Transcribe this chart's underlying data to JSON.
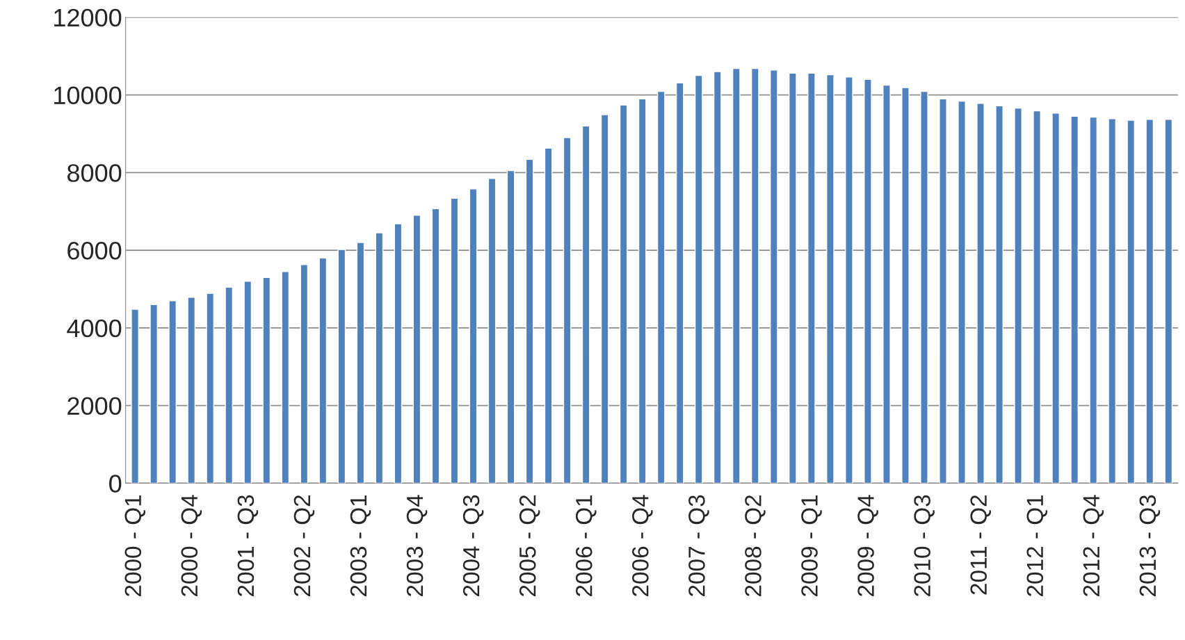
{
  "chart_data": {
    "type": "bar",
    "categories": [
      "2000 - Q1",
      null,
      null,
      "2000 - Q4",
      null,
      null,
      "2001 - Q3",
      null,
      null,
      "2002 - Q2",
      null,
      null,
      "2003 - Q1",
      null,
      null,
      "2003 - Q4",
      null,
      null,
      "2004 - Q3",
      null,
      null,
      "2005 - Q2",
      null,
      null,
      "2006 - Q1",
      null,
      null,
      "2006 - Q4",
      null,
      null,
      "2007 - Q3",
      null,
      null,
      "2008 - Q2",
      null,
      null,
      "2009 - Q1",
      null,
      null,
      "2009 - Q4",
      null,
      null,
      "2010 - Q3",
      null,
      null,
      "2011 - Q2",
      null,
      null,
      "2012 - Q1",
      null,
      null,
      "2012 - Q4",
      null,
      null,
      "2013 - Q3",
      null
    ],
    "values": [
      4480,
      4600,
      4700,
      4790,
      4890,
      5050,
      5200,
      5300,
      5450,
      5630,
      5800,
      6020,
      6200,
      6450,
      6680,
      6900,
      7070,
      7340,
      7580,
      7850,
      8050,
      8340,
      8630,
      8900,
      9200,
      9490,
      9740,
      9900,
      10090,
      10310,
      10500,
      10600,
      10680,
      10680,
      10640,
      10560,
      10560,
      10520,
      10460,
      10400,
      10250,
      10190,
      10090,
      9900,
      9840,
      9780,
      9720,
      9660,
      9590,
      9530,
      9450,
      9430,
      9390,
      9350,
      9370,
      9370
    ],
    "color": "#4f81bd",
    "ylim": [
      0,
      12000
    ],
    "yticks": [
      0,
      2000,
      4000,
      6000,
      8000,
      10000,
      12000
    ],
    "grid": "y",
    "legend": false
  }
}
